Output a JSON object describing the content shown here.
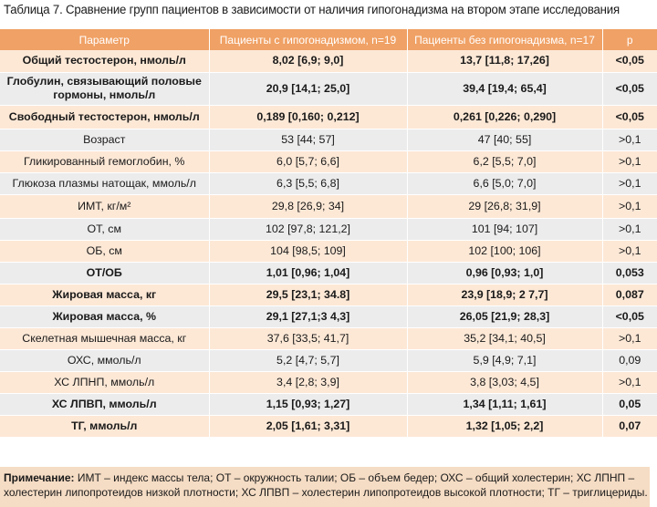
{
  "title": "Таблица 7. Сравнение групп пациентов в зависимости от наличия гипогонадизма на втором этапе исследования",
  "columns": [
    "Параметр",
    "Пациенты с гипогонадизмом, n=19",
    "Пациенты без гипогонадизма, n=17",
    "p"
  ],
  "rows": [
    {
      "param": "Общий тестостерон, нмоль/л",
      "g1": "8,02 [6,9; 9,0]",
      "g2": "13,7 [11,8; 17,26]",
      "p": "<0,05",
      "bold": true
    },
    {
      "param": "Глобулин, связывающий половые гормоны, нмоль/л",
      "g1": "20,9 [14,1; 25,0]",
      "g2": "39,4 [19,4; 65,4]",
      "p": "<0,05",
      "bold": true
    },
    {
      "param": "Свободный тестостерон, нмоль/л",
      "g1": "0,189 [0,160; 0,212]",
      "g2": "0,261 [0,226; 0,290]",
      "p": "<0,05",
      "bold": true
    },
    {
      "param": "Возраст",
      "g1": "53 [44; 57]",
      "g2": "47 [40; 55]",
      "p": ">0,1",
      "bold": false
    },
    {
      "param": "Гликированный гемоглобин, %",
      "g1": "6,0 [5,7; 6,6]",
      "g2": "6,2 [5,5; 7,0]",
      "p": ">0,1",
      "bold": false
    },
    {
      "param": "Глюкоза плазмы натощак, ммоль/л",
      "g1": "6,3 [5,5; 6,8]",
      "g2": "6,6 [5,0; 7,0]",
      "p": ">0,1",
      "bold": false
    },
    {
      "param": "ИМТ, кг/м²",
      "g1": "29,8 [26,9; 34]",
      "g2": "29 [26,8; 31,9]",
      "p": ">0,1",
      "bold": false
    },
    {
      "param": "ОТ, см",
      "g1": "102 [97,8; 121,2]",
      "g2": "101 [94; 107]",
      "p": ">0,1",
      "bold": false
    },
    {
      "param": "ОБ, см",
      "g1": "104 [98,5; 109]",
      "g2": "102 [100; 106]",
      "p": ">0,1",
      "bold": false
    },
    {
      "param": "ОТ/ОБ",
      "g1": "1,01 [0,96; 1,04]",
      "g2": "0,96 [0,93; 1,0]",
      "p": "0,053",
      "bold": true
    },
    {
      "param": "Жировая масса, кг",
      "g1": "29,5 [23,1; 34.8]",
      "g2": "23,9 [18,9; 2 7,7]",
      "p": "0,087",
      "bold": true
    },
    {
      "param": "Жировая масса, %",
      "g1": "29,1 [27,1;3 4,3]",
      "g2": "26,05 [21,9; 28,3]",
      "p": "<0,05",
      "bold": true
    },
    {
      "param": "Скелетная мышечная масса, кг",
      "g1": "37,6 [33,5; 41,7]",
      "g2": "35,2 [34,1; 40,5]",
      "p": ">0,1",
      "bold": false
    },
    {
      "param": "ОХС, ммоль/л",
      "g1": "5,2 [4,7; 5,7]",
      "g2": "5,9 [4,9; 7,1]",
      "p": "0,09",
      "bold": false
    },
    {
      "param": "ХС ЛПНП, ммоль/л",
      "g1": "3,4 [2,8; 3,9]",
      "g2": "3,8 [3,03; 4,5]",
      "p": ">0,1",
      "bold": false
    },
    {
      "param": "ХС ЛПВП, ммоль/л",
      "g1": "1,15 [0,93; 1,27]",
      "g2": "1,34 [1,11; 1,61]",
      "p": "0,05",
      "bold": true
    },
    {
      "param": "ТГ, ммоль/л",
      "g1": "2,05 [1,61; 3,31]",
      "g2": "1,32 [1,05; 2,2]",
      "p": "0,07",
      "bold": true
    }
  ],
  "note": {
    "label": "Примечание:",
    "text": " ИМТ – индекс массы тела; ОТ – окружность талии; ОБ – объем бедер; ОХС – общий холестерин; ХС ЛПНП – холестерин липопротеидов низкой плотности;  ХС ЛПВП – холестерин липопротеидов высокой плотности; ТГ – триглицериды."
  },
  "colors": {
    "header_bg": "#f0a165",
    "row_odd": "#fde8d6",
    "row_even": "#ececec",
    "note_bg": "#f5dcc4"
  }
}
